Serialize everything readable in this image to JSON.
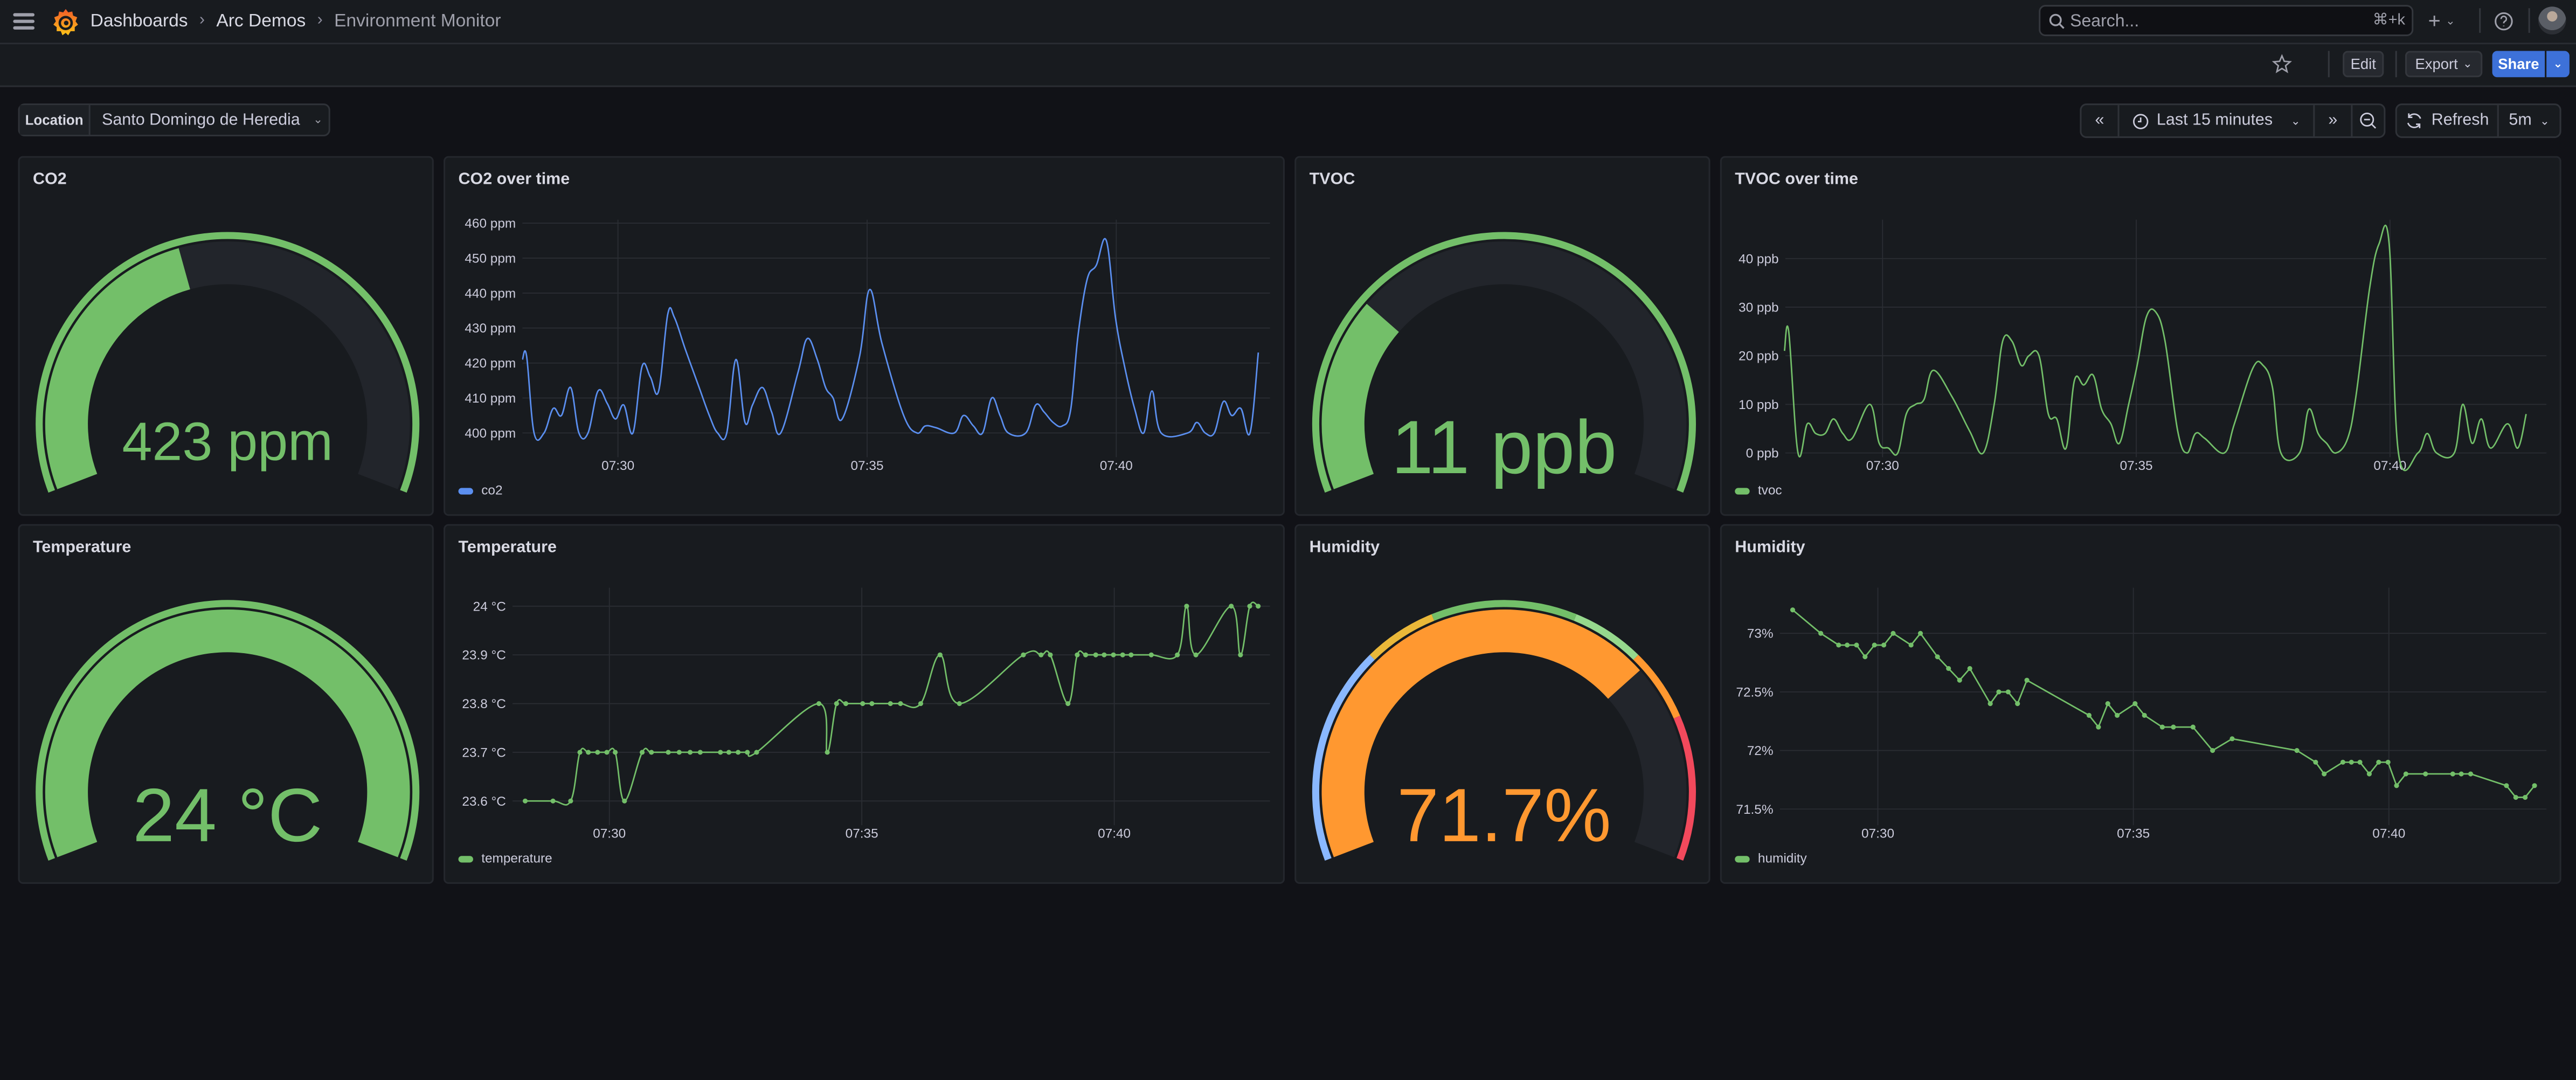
{
  "header": {
    "breadcrumb": [
      "Dashboards",
      "Arc Demos",
      "Environment Monitor"
    ],
    "search_placeholder": "Search...",
    "search_shortcut": "⌘+k",
    "new_icon": "plus-icon",
    "help_icon": "help-icon"
  },
  "toolbar": {
    "edit_label": "Edit",
    "export_label": "Export",
    "share_label": "Share",
    "share_color": "#3d71d9"
  },
  "variables": {
    "location_label": "Location",
    "location_value": "Santo Domingo de Heredia"
  },
  "time_controls": {
    "range_label": "Last 15 minutes",
    "refresh_label": "Refresh",
    "refresh_interval": "5m"
  },
  "colors": {
    "background": "#111217",
    "panel": "#181b1f",
    "green": "#73bf69",
    "blue_series": "#5b8ff0",
    "orange": "#ff9830",
    "gauge_track": "#22252b"
  },
  "gauges": [
    {
      "title": "CO2",
      "value": "423 ppm",
      "fill": 0.43,
      "color": "#73bf69",
      "bands": [
        {
          "to": 1.0,
          "color": "#73bf69"
        }
      ]
    },
    {
      "title": "TVOC",
      "value": "11 ppb",
      "fill": 0.28,
      "color": "#73bf69",
      "bands": [
        {
          "to": 1.0,
          "color": "#73bf69"
        }
      ]
    },
    {
      "title": "Temperature",
      "value": "24 °C",
      "fill": 1.0,
      "color": "#73bf69",
      "bands": [
        {
          "to": 1.0,
          "color": "#73bf69"
        }
      ]
    },
    {
      "title": "Humidity",
      "value": "71.7%",
      "fill": 0.717,
      "color": "#ff9830",
      "bands": [
        {
          "to": 0.3,
          "color": "#8ab8ff"
        },
        {
          "to": 0.4,
          "color": "#eab839"
        },
        {
          "to": 0.6,
          "color": "#73bf69"
        },
        {
          "to": 0.7,
          "color": "#96d98d"
        },
        {
          "to": 0.8,
          "color": "#ff9830"
        },
        {
          "to": 1.0,
          "color": "#f2495c"
        }
      ]
    }
  ],
  "chart_data": [
    {
      "type": "line",
      "title": "CO2 over time",
      "series_name": "co2",
      "color": "#5b8ff0",
      "smooth": true,
      "points_shown": false,
      "xlim": [
        "07:28:05",
        "07:43:05"
      ],
      "xticks": [
        "07:30",
        "07:35",
        "07:40"
      ],
      "ylim": [
        394,
        461
      ],
      "yticks": [
        400,
        410,
        420,
        430,
        440,
        450,
        460
      ],
      "ytick_labels": [
        "400 ppm",
        "410 ppm",
        "420 ppm",
        "430 ppm",
        "440 ppm",
        "450 ppm",
        "460 ppm"
      ],
      "grid": true,
      "legend": "bottom-left",
      "data": [
        [
          "07:28:05",
          421
        ],
        [
          "07:28:10",
          422
        ],
        [
          "07:28:19",
          400
        ],
        [
          "07:28:31",
          400
        ],
        [
          "07:28:42",
          407
        ],
        [
          "07:28:52",
          405
        ],
        [
          "07:29:03",
          413
        ],
        [
          "07:29:13",
          400
        ],
        [
          "07:29:24",
          400
        ],
        [
          "07:29:36",
          412
        ],
        [
          "07:29:47",
          408.5
        ],
        [
          "07:29:57",
          404
        ],
        [
          "07:30:07",
          408
        ],
        [
          "07:30:18",
          400
        ],
        [
          "07:30:29",
          419
        ],
        [
          "07:30:39",
          416
        ],
        [
          "07:30:49",
          412
        ],
        [
          "07:31:00",
          434
        ],
        [
          "07:31:08",
          433
        ],
        [
          "07:31:21",
          424
        ],
        [
          "07:31:37",
          413.5
        ],
        [
          "07:31:50",
          405
        ],
        [
          "07:32:00",
          400
        ],
        [
          "07:32:11",
          400
        ],
        [
          "07:32:22",
          421
        ],
        [
          "07:32:33",
          403
        ],
        [
          "07:32:42",
          408
        ],
        [
          "07:32:54",
          413
        ],
        [
          "07:33:05",
          406
        ],
        [
          "07:33:16",
          400
        ],
        [
          "07:33:37",
          417.5
        ],
        [
          "07:33:48",
          427
        ],
        [
          "07:34:00",
          421
        ],
        [
          "07:34:10",
          413
        ],
        [
          "07:34:19",
          410
        ],
        [
          "07:34:30",
          404
        ],
        [
          "07:34:51",
          422
        ],
        [
          "07:35:03",
          441
        ],
        [
          "07:35:18",
          425.5
        ],
        [
          "07:35:44",
          405
        ],
        [
          "07:36:00",
          400
        ],
        [
          "07:36:10",
          402
        ],
        [
          "07:36:23",
          401.5
        ],
        [
          "07:36:45",
          400
        ],
        [
          "07:36:56",
          405
        ],
        [
          "07:37:08",
          402
        ],
        [
          "07:37:19",
          400
        ],
        [
          "07:37:30",
          410
        ],
        [
          "07:37:40",
          405
        ],
        [
          "07:37:50",
          400
        ],
        [
          "07:38:11",
          400
        ],
        [
          "07:38:23",
          408
        ],
        [
          "07:38:33",
          406
        ],
        [
          "07:38:44",
          403
        ],
        [
          "07:38:55",
          402
        ],
        [
          "07:39:05",
          406.5
        ],
        [
          "07:39:14",
          428
        ],
        [
          "07:39:25",
          444
        ],
        [
          "07:39:36",
          448
        ],
        [
          "07:39:48",
          455
        ],
        [
          "07:39:59",
          433
        ],
        [
          "07:40:10",
          419
        ],
        [
          "07:40:22",
          407
        ],
        [
          "07:40:33",
          400
        ],
        [
          "07:40:43",
          412
        ],
        [
          "07:40:54",
          400
        ],
        [
          "07:41:26",
          400
        ],
        [
          "07:41:37",
          403
        ],
        [
          "07:41:47",
          400
        ],
        [
          "07:41:58",
          400
        ],
        [
          "07:42:09",
          409
        ],
        [
          "07:42:19",
          405
        ],
        [
          "07:42:30",
          407
        ],
        [
          "07:42:41",
          400
        ],
        [
          "07:42:51",
          423
        ]
      ]
    },
    {
      "type": "line",
      "title": "TVOC over time",
      "series_name": "tvoc",
      "color": "#73bf69",
      "smooth": true,
      "points_shown": false,
      "xlim": [
        "07:28:05",
        "07:43:05"
      ],
      "xticks": [
        "07:30",
        "07:35",
        "07:40"
      ],
      "ylim": [
        -0.2,
        48
      ],
      "yticks": [
        0,
        10,
        20,
        30,
        40
      ],
      "ytick_labels": [
        "0 ppb",
        "10 ppb",
        "20 ppb",
        "30 ppb",
        "40 ppb"
      ],
      "grid": true,
      "legend": "bottom-left",
      "data": [
        [
          "07:28:04",
          21
        ],
        [
          "07:28:09",
          25
        ],
        [
          "07:28:20",
          0
        ],
        [
          "07:28:31",
          6
        ],
        [
          "07:28:41",
          4
        ],
        [
          "07:28:52",
          4
        ],
        [
          "07:29:02",
          7
        ],
        [
          "07:29:13",
          4
        ],
        [
          "07:29:24",
          3
        ],
        [
          "07:29:45",
          10
        ],
        [
          "07:29:56",
          2
        ],
        [
          "07:30:07",
          1
        ],
        [
          "07:30:18",
          0
        ],
        [
          "07:30:28",
          8
        ],
        [
          "07:30:39",
          10
        ],
        [
          "07:30:49",
          11
        ],
        [
          "07:31:00",
          17
        ],
        [
          "07:31:22",
          11.6
        ],
        [
          "07:31:43",
          4.5
        ],
        [
          "07:31:59",
          0
        ],
        [
          "07:32:12",
          10
        ],
        [
          "07:32:22",
          23
        ],
        [
          "07:32:33",
          23
        ],
        [
          "07:32:44",
          18
        ],
        [
          "07:32:53",
          20
        ],
        [
          "07:33:05",
          20
        ],
        [
          "07:33:16",
          8
        ],
        [
          "07:33:26",
          7
        ],
        [
          "07:33:37",
          1
        ],
        [
          "07:33:47",
          15
        ],
        [
          "07:33:58",
          14
        ],
        [
          "07:34:09",
          16
        ],
        [
          "07:34:19",
          9
        ],
        [
          "07:34:30",
          6
        ],
        [
          "07:34:40",
          2
        ],
        [
          "07:34:51",
          10
        ],
        [
          "07:35:01",
          18
        ],
        [
          "07:35:12",
          28
        ],
        [
          "07:35:23",
          29
        ],
        [
          "07:35:34",
          23
        ],
        [
          "07:35:49",
          4.5
        ],
        [
          "07:36:00",
          0
        ],
        [
          "07:36:10",
          4
        ],
        [
          "07:36:21",
          3
        ],
        [
          "07:36:44",
          0
        ],
        [
          "07:36:56",
          6
        ],
        [
          "07:37:18",
          17.5
        ],
        [
          "07:37:30",
          18
        ],
        [
          "07:37:41",
          13.5
        ],
        [
          "07:37:51",
          0
        ],
        [
          "07:38:13",
          0
        ],
        [
          "07:38:24",
          9
        ],
        [
          "07:38:35",
          4
        ],
        [
          "07:38:45",
          2
        ],
        [
          "07:38:56",
          0
        ],
        [
          "07:39:10",
          3
        ],
        [
          "07:39:20",
          12
        ],
        [
          "07:39:36",
          34
        ],
        [
          "07:39:47",
          43
        ],
        [
          "07:39:59",
          43
        ],
        [
          "07:40:10",
          0
        ],
        [
          "07:40:33",
          0
        ],
        [
          "07:40:44",
          4
        ],
        [
          "07:40:55",
          0
        ],
        [
          "07:41:16",
          0
        ],
        [
          "07:41:26",
          10
        ],
        [
          "07:41:37",
          2
        ],
        [
          "07:41:48",
          7
        ],
        [
          "07:41:59",
          1
        ],
        [
          "07:42:19",
          6
        ],
        [
          "07:42:31",
          1
        ],
        [
          "07:42:41",
          8
        ]
      ]
    },
    {
      "type": "line",
      "title": "Temperature",
      "series_name": "temperature",
      "color": "#73bf69",
      "smooth": true,
      "points_shown": true,
      "xlim": [
        "07:28:05",
        "07:43:05"
      ],
      "xticks": [
        "07:30",
        "07:35",
        "07:40"
      ],
      "ylim": [
        23.557,
        24.038
      ],
      "yticks": [
        23.6,
        23.7,
        23.8,
        23.9,
        24.0
      ],
      "ytick_labels": [
        "23.6 °C",
        "23.7 °C",
        "23.8 °C",
        "23.9 °C",
        "24 °C"
      ],
      "grid": true,
      "legend": "bottom-left",
      "data": [
        [
          "07:28:20",
          23.6
        ],
        [
          "07:28:53",
          23.6
        ],
        [
          "07:29:14",
          23.6
        ],
        [
          "07:29:25",
          23.7
        ],
        [
          "07:29:35",
          23.7
        ],
        [
          "07:29:46",
          23.7
        ],
        [
          "07:29:57",
          23.7
        ],
        [
          "07:30:07",
          23.7
        ],
        [
          "07:30:18",
          23.6
        ],
        [
          "07:30:39",
          23.7
        ],
        [
          "07:30:50",
          23.7
        ],
        [
          "07:31:10",
          23.7
        ],
        [
          "07:31:23",
          23.7
        ],
        [
          "07:31:36",
          23.7
        ],
        [
          "07:31:48",
          23.7
        ],
        [
          "07:32:12",
          23.7
        ],
        [
          "07:32:22",
          23.7
        ],
        [
          "07:32:33",
          23.7
        ],
        [
          "07:32:44",
          23.7
        ],
        [
          "07:32:55",
          23.7
        ],
        [
          "07:34:09",
          23.8
        ],
        [
          "07:34:19",
          23.7
        ],
        [
          "07:34:30",
          23.8
        ],
        [
          "07:34:41",
          23.8
        ],
        [
          "07:35:01",
          23.8
        ],
        [
          "07:35:12",
          23.8
        ],
        [
          "07:35:34",
          23.8
        ],
        [
          "07:35:46",
          23.8
        ],
        [
          "07:36:10",
          23.8
        ],
        [
          "07:36:33",
          23.9
        ],
        [
          "07:36:56",
          23.8
        ],
        [
          "07:38:12",
          23.9
        ],
        [
          "07:38:33",
          23.9
        ],
        [
          "07:38:44",
          23.9
        ],
        [
          "07:39:05",
          23.8
        ],
        [
          "07:39:16",
          23.9
        ],
        [
          "07:39:26",
          23.9
        ],
        [
          "07:39:38",
          23.9
        ],
        [
          "07:39:48",
          23.9
        ],
        [
          "07:39:59",
          23.9
        ],
        [
          "07:40:10",
          23.9
        ],
        [
          "07:40:20",
          23.9
        ],
        [
          "07:40:44",
          23.9
        ],
        [
          "07:41:15",
          23.9
        ],
        [
          "07:41:26",
          24.0
        ],
        [
          "07:41:37",
          23.9
        ],
        [
          "07:42:19",
          24.0
        ],
        [
          "07:42:30",
          23.9
        ],
        [
          "07:42:41",
          24.0
        ],
        [
          "07:42:51",
          24.0
        ]
      ]
    },
    {
      "type": "line",
      "title": "Humidity",
      "series_name": "humidity",
      "color": "#73bf69",
      "smooth": false,
      "points_shown": true,
      "xlim": [
        "07:28:05",
        "07:43:05"
      ],
      "xticks": [
        "07:30",
        "07:35",
        "07:40"
      ],
      "ylim": [
        71.39,
        73.39
      ],
      "yticks": [
        71.5,
        72,
        72.5,
        73
      ],
      "ytick_labels": [
        "71.5%",
        "72%",
        "72.5%",
        "73%"
      ],
      "grid": true,
      "legend": "bottom-left",
      "data": [
        [
          "07:28:20",
          73.2
        ],
        [
          "07:28:53",
          73.0
        ],
        [
          "07:29:14",
          72.9
        ],
        [
          "07:29:24",
          72.9
        ],
        [
          "07:29:35",
          72.9
        ],
        [
          "07:29:45",
          72.8
        ],
        [
          "07:29:56",
          72.9
        ],
        [
          "07:30:07",
          72.9
        ],
        [
          "07:30:18",
          73.0
        ],
        [
          "07:30:39",
          72.9
        ],
        [
          "07:30:50",
          73.0
        ],
        [
          "07:31:10",
          72.8
        ],
        [
          "07:31:23",
          72.7
        ],
        [
          "07:31:36",
          72.6
        ],
        [
          "07:31:48",
          72.7
        ],
        [
          "07:32:12",
          72.4
        ],
        [
          "07:32:22",
          72.5
        ],
        [
          "07:32:33",
          72.5
        ],
        [
          "07:32:44",
          72.4
        ],
        [
          "07:32:55",
          72.6
        ],
        [
          "07:34:08",
          72.3
        ],
        [
          "07:34:19",
          72.2
        ],
        [
          "07:34:30",
          72.4
        ],
        [
          "07:34:41",
          72.3
        ],
        [
          "07:35:02",
          72.4
        ],
        [
          "07:35:13",
          72.3
        ],
        [
          "07:35:34",
          72.2
        ],
        [
          "07:35:47",
          72.2
        ],
        [
          "07:36:10",
          72.2
        ],
        [
          "07:36:33",
          72.0
        ],
        [
          "07:36:56",
          72.1
        ],
        [
          "07:38:12",
          72.0
        ],
        [
          "07:38:34",
          71.9
        ],
        [
          "07:38:44",
          71.8
        ],
        [
          "07:39:06",
          71.9
        ],
        [
          "07:39:16",
          71.9
        ],
        [
          "07:39:26",
          71.9
        ],
        [
          "07:39:37",
          71.8
        ],
        [
          "07:39:48",
          71.9
        ],
        [
          "07:39:59",
          71.9
        ],
        [
          "07:40:09",
          71.7
        ],
        [
          "07:40:20",
          71.8
        ],
        [
          "07:40:43",
          71.8
        ],
        [
          "07:41:15",
          71.8
        ],
        [
          "07:41:25",
          71.8
        ],
        [
          "07:41:36",
          71.8
        ],
        [
          "07:42:18",
          71.7
        ],
        [
          "07:42:29",
          71.6
        ],
        [
          "07:42:40",
          71.6
        ],
        [
          "07:42:51",
          71.7
        ]
      ]
    }
  ]
}
